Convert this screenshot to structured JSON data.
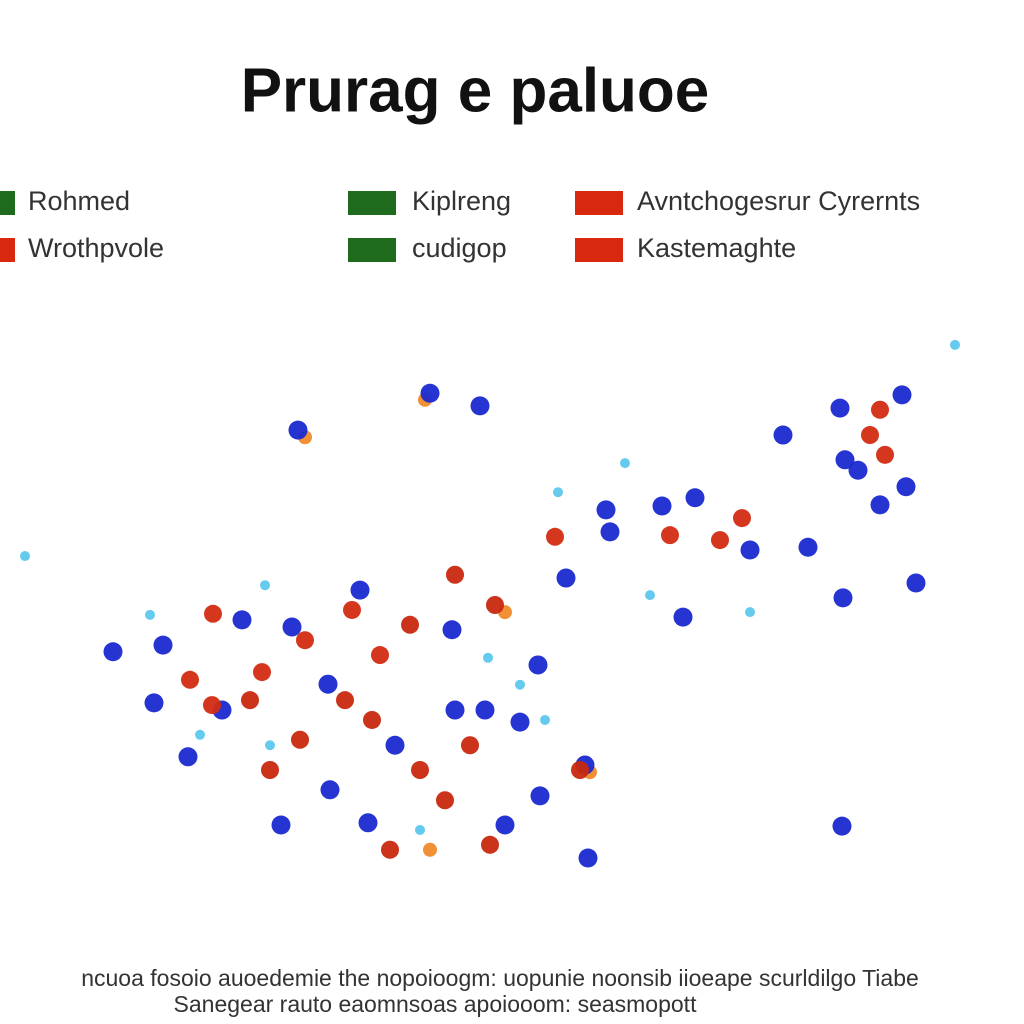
{
  "chart_data": {
    "type": "scatter",
    "title": "Prurag e paluoe",
    "footer": [
      "ncuoa fosoio auoedemie the nopoioogm: uopunie noonsib iioeape scurldilgo Tiabe",
      "Sanegear rauto eaomnsoas apoiooom: seasmopott"
    ],
    "xlim": [
      0,
      100
    ],
    "ylim": [
      0,
      100
    ],
    "series": [
      {
        "name": "Rohmed",
        "color": "#1e6b1e",
        "marker_color": "#5cc8ee",
        "x": [
          95.5,
          62.5,
          55.8,
          2.5,
          26.5,
          15.0,
          27.0,
          48.8,
          54.5,
          75.0,
          65.0,
          20.0,
          52.0,
          42.0
        ],
        "values": [
          97.3,
          75.8,
          70.5,
          58.9,
          53.6,
          48.2,
          24.5,
          40.4,
          29.1,
          48.7,
          51.8,
          26.4,
          35.5,
          9.1
        ]
      },
      {
        "name": "Wrothpvole",
        "color": "#d8290f",
        "marker_color": "#d32c12",
        "x": [
          87.0,
          88.5,
          88.0,
          55.5,
          67.0,
          72.0,
          74.2,
          21.3,
          19.0,
          21.2,
          26.2,
          30.5,
          35.2,
          38.0
        ],
        "values": [
          80.9,
          77.3,
          85.5,
          62.4,
          62.7,
          61.8,
          65.8,
          48.4,
          36.4,
          31.8,
          37.8,
          43.6,
          49.1,
          40.9
        ]
      },
      {
        "name": "Kiplreng",
        "color": "#1e6b1e",
        "marker_color": "#1a2ad0",
        "x": [
          43.0,
          48.0,
          29.8,
          78.3,
          90.6,
          88.0,
          85.8,
          84.5,
          84.0,
          90.2,
          66.2,
          69.5,
          61.0,
          60.6,
          80.8,
          75.0,
          91.6,
          84.3,
          68.3,
          56.6
        ],
        "values": [
          88.5,
          86.2,
          81.8,
          80.9,
          71.5,
          68.2,
          74.5,
          76.4,
          85.8,
          88.2,
          68.0,
          69.5,
          63.3,
          67.3,
          60.5,
          60.0,
          54.0,
          51.3,
          47.8,
          54.9
        ]
      },
      {
        "name": "cudigop",
        "color": "#1e6b1e",
        "marker_color": "#1a2ad0",
        "x": [
          11.3,
          16.3,
          15.4,
          18.8,
          28.1,
          58.8,
          84.2,
          53.8,
          54.0,
          58.5,
          45.2,
          29.2,
          32.8,
          36.0,
          39.5,
          33.0,
          36.8,
          50.5,
          45.5,
          48.5,
          52.0,
          24.2,
          22.2
        ],
        "values": [
          41.5,
          42.7,
          32.2,
          22.4,
          10.0,
          4.0,
          9.8,
          39.1,
          15.3,
          20.9,
          45.5,
          46.0,
          35.6,
          52.7,
          24.5,
          16.4,
          10.4,
          10.0,
          30.9,
          30.9,
          28.7,
          47.3,
          30.9
        ]
      },
      {
        "name": "Avntchogesrur Cyrernts",
        "color": "#d8290f",
        "marker_color": "#c8280e",
        "x": [
          41.0,
          37.2,
          42.0,
          44.5,
          39.0,
          49.0,
          27.0,
          30.0,
          58.0,
          45.5,
          49.5,
          47.0,
          34.5,
          25.0
        ],
        "values": [
          46.4,
          29.1,
          20.0,
          14.5,
          5.5,
          6.4,
          20.0,
          25.5,
          20.0,
          55.5,
          50.0,
          24.5,
          32.7,
          32.7
        ]
      },
      {
        "name": "Kastemaghte",
        "color": "#d8290f",
        "marker_color": "#f08a2a",
        "x": [
          30.5,
          59.0,
          50.5,
          42.5,
          43.0
        ],
        "values": [
          80.5,
          19.6,
          48.7,
          87.3,
          5.5
        ]
      }
    ]
  }
}
